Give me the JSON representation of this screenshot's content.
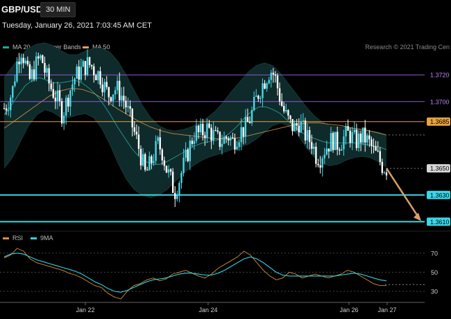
{
  "header": {
    "symbol": "GBP/USD",
    "timeframe": "30 MIN",
    "datetime": "Tuesday, January 26, 2021 7:03:45 AM CET"
  },
  "legend_main": [
    {
      "label": "MA 20 + Bollinger Bands",
      "color": "#26a69a"
    },
    {
      "label": "MA 50",
      "color": "#e0a060"
    }
  ],
  "legend_rsi": [
    {
      "label": "RSI",
      "color": "#d4903c"
    },
    {
      "label": "9MA",
      "color": "#2fd4e0"
    }
  ],
  "credit": "Research © 2021 Trading Cen",
  "colors": {
    "candle": "#4ad8e8",
    "candle_down": "#ffffff",
    "bollinger_fill": "#0f2a2a",
    "ma20": "#26a69a",
    "ma50": "#c89050",
    "purple_level": "#8d5ad6",
    "orange_level": "#e8a33c",
    "cyan_level": "#38d8e8",
    "arrow": "#d9a066",
    "rsi": "#d4903c",
    "rsi_ma": "#2fd4e0"
  },
  "chart_data": [
    {
      "type": "candlestick",
      "y_range": [
        1.3605,
        1.3745
      ],
      "x_ticks": [
        "Jan 22",
        "Jan 24",
        "Jan 26",
        "Jan 27"
      ],
      "levels": [
        {
          "value": 1.372,
          "label": "1.3720",
          "style": "purple"
        },
        {
          "value": 1.37,
          "label": "1.3700",
          "style": "purple"
        },
        {
          "value": 1.3685,
          "label": "1.3685",
          "style": "orange"
        },
        {
          "value": 1.365,
          "label": "1.3650",
          "style": "current"
        },
        {
          "value": 1.363,
          "label": "1.3630",
          "style": "cyan"
        },
        {
          "value": 1.361,
          "label": "1.3610",
          "style": "cyan"
        }
      ],
      "close_path": [
        1.3695,
        1.37,
        1.3708,
        1.3728,
        1.374,
        1.373,
        1.3715,
        1.3722,
        1.373,
        1.3733,
        1.372,
        1.3712,
        1.3706,
        1.37,
        1.369,
        1.37,
        1.371,
        1.3718,
        1.3722,
        1.3725,
        1.3728,
        1.3727,
        1.3722,
        1.372,
        1.3712,
        1.3705,
        1.3708,
        1.371,
        1.3706,
        1.37,
        1.369,
        1.368,
        1.367,
        1.3658,
        1.3645,
        1.3652,
        1.366,
        1.3668,
        1.3663,
        1.365,
        1.3642,
        1.3632,
        1.364,
        1.365,
        1.366,
        1.367,
        1.3678,
        1.3675,
        1.3678,
        1.368,
        1.3676,
        1.3672,
        1.367,
        1.3672,
        1.3674,
        1.367,
        1.3674,
        1.3678,
        1.368,
        1.3686,
        1.3695,
        1.3705,
        1.3712,
        1.3718,
        1.3724,
        1.372,
        1.3708,
        1.3695,
        1.3688,
        1.3682,
        1.368,
        1.3685,
        1.3678,
        1.3672,
        1.367,
        1.366,
        1.3658,
        1.3664,
        1.3668,
        1.3672,
        1.3668,
        1.367,
        1.3674,
        1.3676,
        1.3672,
        1.367,
        1.3674,
        1.3672,
        1.3668,
        1.3662,
        1.3658,
        1.3652,
        1.365
      ],
      "moving_averages": [
        {
          "name": "MA 20",
          "values": [
            1.369,
            1.3697,
            1.3705,
            1.3712,
            1.3716,
            1.3718,
            1.3716,
            1.3714,
            1.3714,
            1.3715,
            1.3716,
            1.3714,
            1.371,
            1.3705,
            1.3698,
            1.369,
            1.3681,
            1.3673,
            1.3665,
            1.3659,
            1.3655,
            1.3653,
            1.3653,
            1.3655,
            1.3658,
            1.3661,
            1.3664,
            1.3667,
            1.3669,
            1.367,
            1.3671,
            1.3673,
            1.3677,
            1.3682,
            1.3688,
            1.3693,
            1.3696,
            1.3696,
            1.3694,
            1.3691,
            1.3686,
            1.3681,
            1.3677,
            1.3674,
            1.3672,
            1.367,
            1.3669,
            1.3669,
            1.3669,
            1.3669,
            1.3669,
            1.3668,
            1.3667,
            1.3666,
            1.3664
          ]
        },
        {
          "name": "MA 50",
          "values": [
            1.368,
            1.3686,
            1.3692,
            1.3698,
            1.3704,
            1.3708,
            1.371,
            1.3709,
            1.3706,
            1.3701,
            1.3695,
            1.369,
            1.3685,
            1.3681,
            1.3678,
            1.3676,
            1.3675,
            1.3674,
            1.3673,
            1.3672,
            1.3672,
            1.3673,
            1.3675,
            1.3677,
            1.3679,
            1.3681,
            1.3683,
            1.3684,
            1.3684,
            1.3683,
            1.3682,
            1.368,
            1.3679,
            1.3677,
            1.3675
          ]
        }
      ],
      "bollinger_bands": {
        "upper": [
          1.3718,
          1.3726,
          1.3734,
          1.374,
          1.3743,
          1.3744,
          1.3742,
          1.3738,
          1.3735,
          1.3735,
          1.3738,
          1.374,
          1.374,
          1.3737,
          1.373,
          1.372,
          1.3708,
          1.3697,
          1.3688,
          1.3682,
          1.3679,
          1.3678,
          1.3679,
          1.3681,
          1.3684,
          1.3688,
          1.3693,
          1.37,
          1.3708,
          1.3715,
          1.3722,
          1.3727,
          1.3729,
          1.3727,
          1.3721,
          1.3713,
          1.3705,
          1.3697,
          1.369,
          1.3685,
          1.3682,
          1.3681,
          1.3681,
          1.368,
          1.3679,
          1.3678,
          1.3677,
          1.3675
        ],
        "lower": [
          1.365,
          1.3658,
          1.367,
          1.3682,
          1.369,
          1.3694,
          1.3692,
          1.3688,
          1.3688,
          1.369,
          1.3691,
          1.3688,
          1.368,
          1.3668,
          1.3654,
          1.3642,
          1.3634,
          1.363,
          1.3628,
          1.363,
          1.3634,
          1.364,
          1.3646,
          1.3651,
          1.3655,
          1.3658,
          1.366,
          1.3662,
          1.3664,
          1.3666,
          1.3668,
          1.3672,
          1.3677,
          1.3682,
          1.3684,
          1.3682,
          1.3676,
          1.3667,
          1.3659,
          1.3654,
          1.3652,
          1.3653,
          1.3656,
          1.3658,
          1.3659,
          1.3658,
          1.3655,
          1.3651
        ]
      },
      "arrow": {
        "from_index": 92,
        "from_value": 1.365,
        "to_value": 1.361
      }
    },
    {
      "type": "line",
      "title": "RSI",
      "y_range": [
        22,
        80
      ],
      "y_ticks": [
        30,
        50,
        70
      ],
      "series": [
        {
          "name": "RSI",
          "values": [
            65,
            68,
            75,
            72,
            64,
            60,
            58,
            56,
            54,
            52,
            49,
            47,
            44,
            40,
            36,
            34,
            28,
            24,
            22,
            30,
            36,
            38,
            42,
            44,
            41,
            43,
            48,
            50,
            52,
            49,
            46,
            44,
            48,
            54,
            58,
            62,
            66,
            72,
            68,
            60,
            52,
            46,
            42,
            44,
            50,
            48,
            44,
            46,
            48,
            46,
            44,
            46,
            48,
            52,
            50,
            46,
            42,
            38,
            36,
            36
          ]
        },
        {
          "name": "9MA",
          "values": [
            66,
            69,
            70,
            69,
            66,
            63,
            61,
            59,
            57,
            55,
            53,
            51,
            48,
            44,
            40,
            37,
            33,
            30,
            29,
            31,
            34,
            37,
            40,
            42,
            43,
            44,
            46,
            48,
            49,
            49,
            48,
            47,
            47,
            49,
            52,
            56,
            60,
            64,
            66,
            64,
            60,
            55,
            50,
            47,
            46,
            46,
            46,
            46,
            46,
            46,
            46,
            46,
            47,
            48,
            49,
            48,
            46,
            44,
            42,
            41
          ]
        }
      ]
    }
  ]
}
